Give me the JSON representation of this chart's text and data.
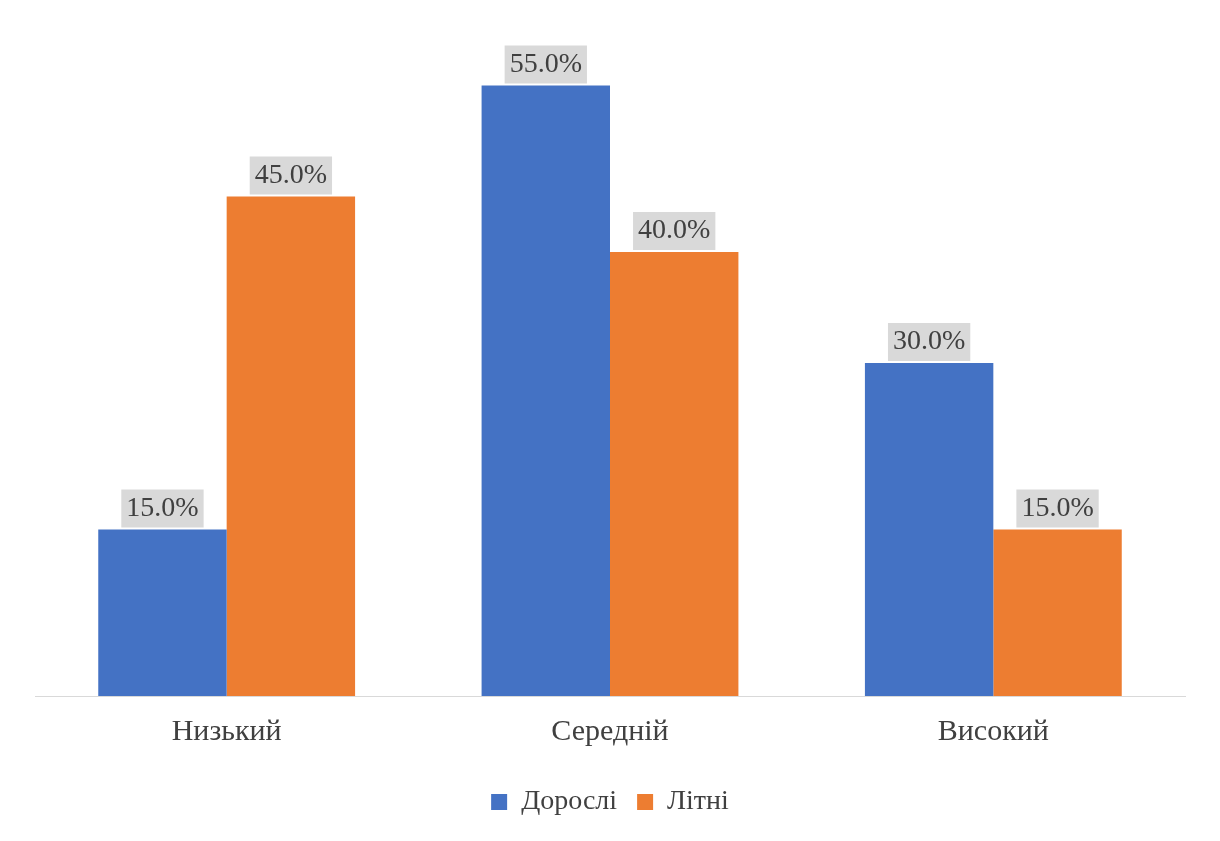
{
  "chart_data": {
    "type": "bar",
    "categories": [
      "Низький",
      "Середній",
      "Високий"
    ],
    "series": [
      {
        "name": "Дорослі",
        "color": "#4472c4",
        "values": [
          15,
          55,
          30
        ],
        "value_labels": [
          "15.0%",
          "55.0%",
          "30.0%"
        ]
      },
      {
        "name": "Літні",
        "color": "#ed7d31",
        "values": [
          45,
          40,
          15
        ],
        "value_labels": [
          "45.0%",
          "40.0%",
          "15.0%"
        ]
      }
    ],
    "legend": "bottom",
    "grid": false
  }
}
